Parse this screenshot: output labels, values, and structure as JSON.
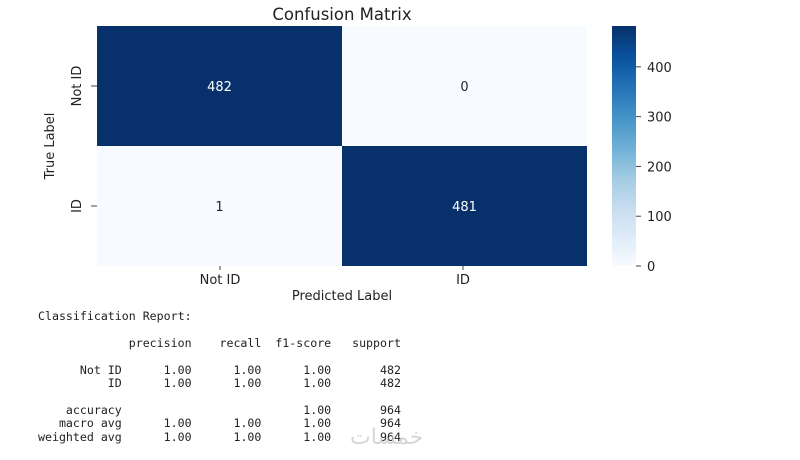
{
  "chart_data": {
    "type": "heatmap",
    "title": "Confusion Matrix",
    "xlabel": "Predicted Label",
    "ylabel": "True Label",
    "x_categories": [
      "Not ID",
      "ID"
    ],
    "y_categories": [
      "Not ID",
      "ID"
    ],
    "values": [
      [
        482,
        0
      ],
      [
        1,
        481
      ]
    ],
    "colorbar": {
      "colormap": "Blues",
      "min": 0,
      "max": 482,
      "ticks": [
        0,
        100,
        200,
        300,
        400
      ],
      "low_color": "#f7fbff",
      "high_color": "#08306b"
    }
  },
  "report_title": "Classification Report:",
  "report_header": [
    "",
    "precision",
    "recall",
    "f1-score",
    "support"
  ],
  "report_rows": [
    [
      "Not ID",
      "1.00",
      "1.00",
      "1.00",
      "482"
    ],
    [
      "ID",
      "1.00",
      "1.00",
      "1.00",
      "482"
    ],
    [
      "",
      "",
      "",
      "",
      ""
    ],
    [
      "accuracy",
      "",
      "",
      "1.00",
      "964"
    ],
    [
      "macro avg",
      "1.00",
      "1.00",
      "1.00",
      "964"
    ],
    [
      "weighted avg",
      "1.00",
      "1.00",
      "1.00",
      "964"
    ]
  ],
  "watermark": "خمسات"
}
